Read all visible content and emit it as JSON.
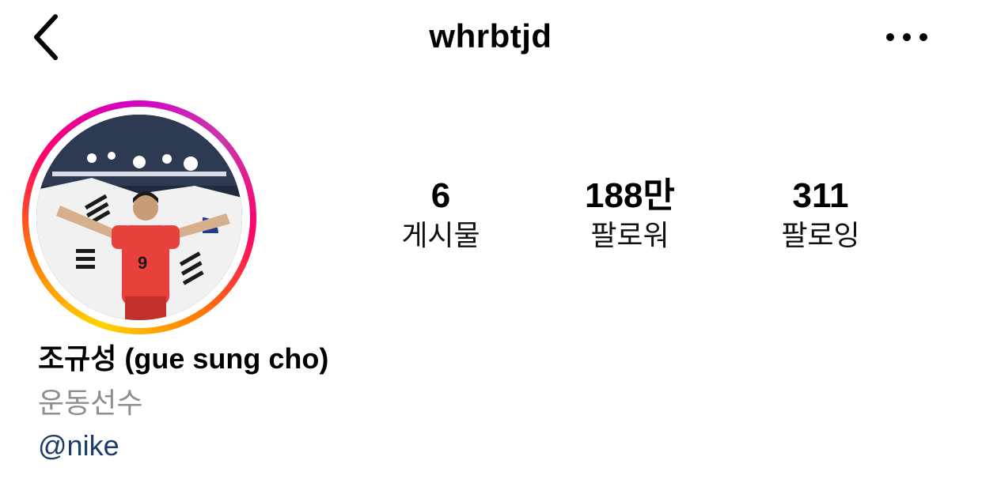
{
  "header": {
    "username": "whrbtjd",
    "back_icon": "chevron-left-icon",
    "more_icon": "more-horizontal-icon"
  },
  "profile": {
    "stats": [
      {
        "value": "6",
        "label": "게시물"
      },
      {
        "value": "188만",
        "label": "팔로워"
      },
      {
        "value": "311",
        "label": "팔로잉"
      }
    ],
    "display_name": "조규성 (gue sung cho)",
    "category": "운동선수",
    "mention": "@nike",
    "colors": {
      "mention": "#1b3c6b",
      "category": "#8e8e8e",
      "jersey": "#e8403a"
    }
  }
}
